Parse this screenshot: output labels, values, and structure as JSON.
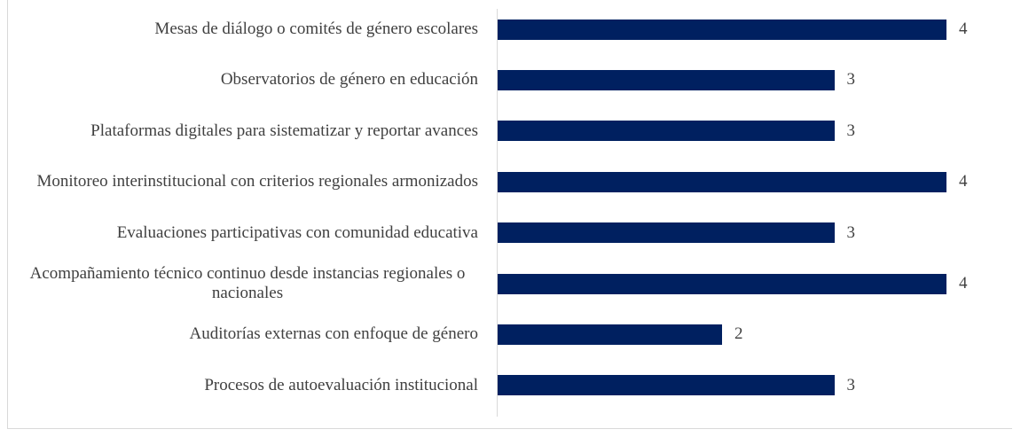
{
  "chart_data": {
    "type": "bar",
    "orientation": "horizontal",
    "color": "#002060",
    "categories": [
      "Mesas de diálogo o comités de género escolares",
      "Observatorios de género en educación",
      "Plataformas digitales para sistematizar y reportar avances",
      "Monitoreo interinstitucional con criterios regionales armonizados",
      "Evaluaciones participativas con comunidad educativa",
      "Acompañamiento técnico continuo desde instancias regionales o nacionales",
      "Auditorías externas con enfoque de género",
      "Procesos de autoevaluación institucional"
    ],
    "values": [
      4,
      3,
      3,
      4,
      3,
      4,
      2,
      3
    ],
    "xlim": [
      0,
      4
    ]
  }
}
